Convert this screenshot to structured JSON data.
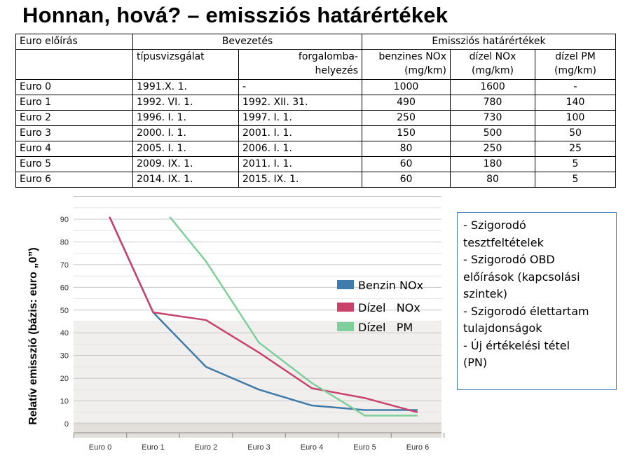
{
  "title": "Honnan, hová? – emissziós határértékek",
  "table": {
    "header_row1": [
      "Euro előírás",
      "Bevezetés",
      "Emissziós határértékek"
    ],
    "header_row2": [
      "",
      "típusvizsgálat",
      "forgalomba-\nhelyezés",
      "benzines NOx\n(mg/km)",
      "dízel NOx\n(mg/km)",
      "dízel PM\n(mg/km)"
    ],
    "rows": [
      [
        "Euro 0",
        "1991.X. 1.",
        "-",
        "1000",
        "1600",
        "-"
      ],
      [
        "Euro 1",
        "1992. VI. 1.",
        "1992. XII. 31.",
        "490",
        "780",
        "140"
      ],
      [
        "Euro 2",
        "1996. I. 1.",
        "1997. I. 1.",
        "250",
        "730",
        "100"
      ],
      [
        "Euro 3",
        "2000. I. 1.",
        "2001. I. 1.",
        "150",
        "500",
        "50"
      ],
      [
        "Euro 4",
        "2005. I. 1.",
        "2006. I. 1.",
        "80",
        "250",
        "25"
      ],
      [
        "Euro 5",
        "2009. IX. 1.",
        "2011. I. 1.",
        "60",
        "180",
        "5"
      ],
      [
        "Euro 6",
        "2014. IX. 1.",
        "2015. IX. 1.",
        "60",
        "80",
        "5"
      ]
    ]
  },
  "chart_data": {
    "type": "line",
    "ylabel": "Relatív emisszió (bázis: euro „0”)",
    "xlabel": "",
    "categories": [
      "Euro 0",
      "Euro 1",
      "Euro 2",
      "Euro 3",
      "Euro 4",
      "Euro 5",
      "Euro 6"
    ],
    "yticks": [
      "0",
      "10",
      "20",
      "30",
      "40",
      "50",
      "60",
      "70",
      "80",
      "90"
    ],
    "ylim": [
      0,
      100
    ],
    "legend_position": "right",
    "series": [
      {
        "name": "Benzin NOx",
        "color": "#3f7bab",
        "values": [
          100,
          49,
          25,
          15,
          8,
          6,
          6
        ]
      },
      {
        "name": "Dízel   NOx",
        "color": "#c8426c",
        "values": [
          100,
          49,
          45.6,
          31.3,
          15.6,
          11.3,
          5
        ]
      },
      {
        "name": "Dízel   PM",
        "color": "#7fcf9a",
        "values": [
          null,
          100,
          71.4,
          35.7,
          17.9,
          3.6,
          3.6
        ]
      }
    ]
  },
  "notes": [
    "- Szigorodó",
    "tesztfeltételek",
    "- Szigorodó OBD",
    "előírások (kapcsolási",
    "szintek)",
    "- Szigorodó élettartam",
    "tulajdonságok",
    "- Új értékelési tétel",
    "(PN)"
  ]
}
